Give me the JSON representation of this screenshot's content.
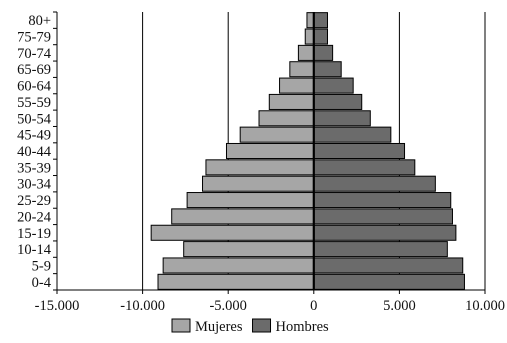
{
  "chart_data": {
    "type": "bar",
    "orientation": "horizontal",
    "stacking": "population-pyramid",
    "categories": [
      "0-4",
      "5-9",
      "10-14",
      "15-19",
      "20-24",
      "25-29",
      "30-34",
      "35-39",
      "40-44",
      "45-49",
      "50-54",
      "55-59",
      "60-64",
      "65-69",
      "70-74",
      "75-79",
      "80+"
    ],
    "series": [
      {
        "name": "Mujeres",
        "color": "#a6a6a6",
        "values": [
          -9100,
          -8800,
          -7600,
          -9500,
          -8300,
          -7400,
          -6500,
          -6300,
          -5100,
          -4300,
          -3200,
          -2600,
          -2000,
          -1400,
          -900,
          -500,
          -400
        ]
      },
      {
        "name": "Hombres",
        "color": "#6b6b6b",
        "values": [
          8800,
          8700,
          7800,
          8300,
          8100,
          8000,
          7100,
          5900,
          5300,
          4500,
          3300,
          2800,
          2300,
          1600,
          1100,
          800,
          800
        ]
      }
    ],
    "xlim": [
      -15000,
      10000
    ],
    "xticks": [
      {
        "value": -15000,
        "label": "-15.000"
      },
      {
        "value": -10000,
        "label": "-10.000"
      },
      {
        "value": -5000,
        "label": "-5.000"
      },
      {
        "value": 0,
        "label": "0"
      },
      {
        "value": 5000,
        "label": "5.000"
      },
      {
        "value": 10000,
        "label": "10.000"
      }
    ],
    "gridlines": [
      -10000,
      -5000,
      5000,
      10000
    ],
    "legend_position": "bottom",
    "title": "",
    "xlabel": "",
    "ylabel": ""
  }
}
